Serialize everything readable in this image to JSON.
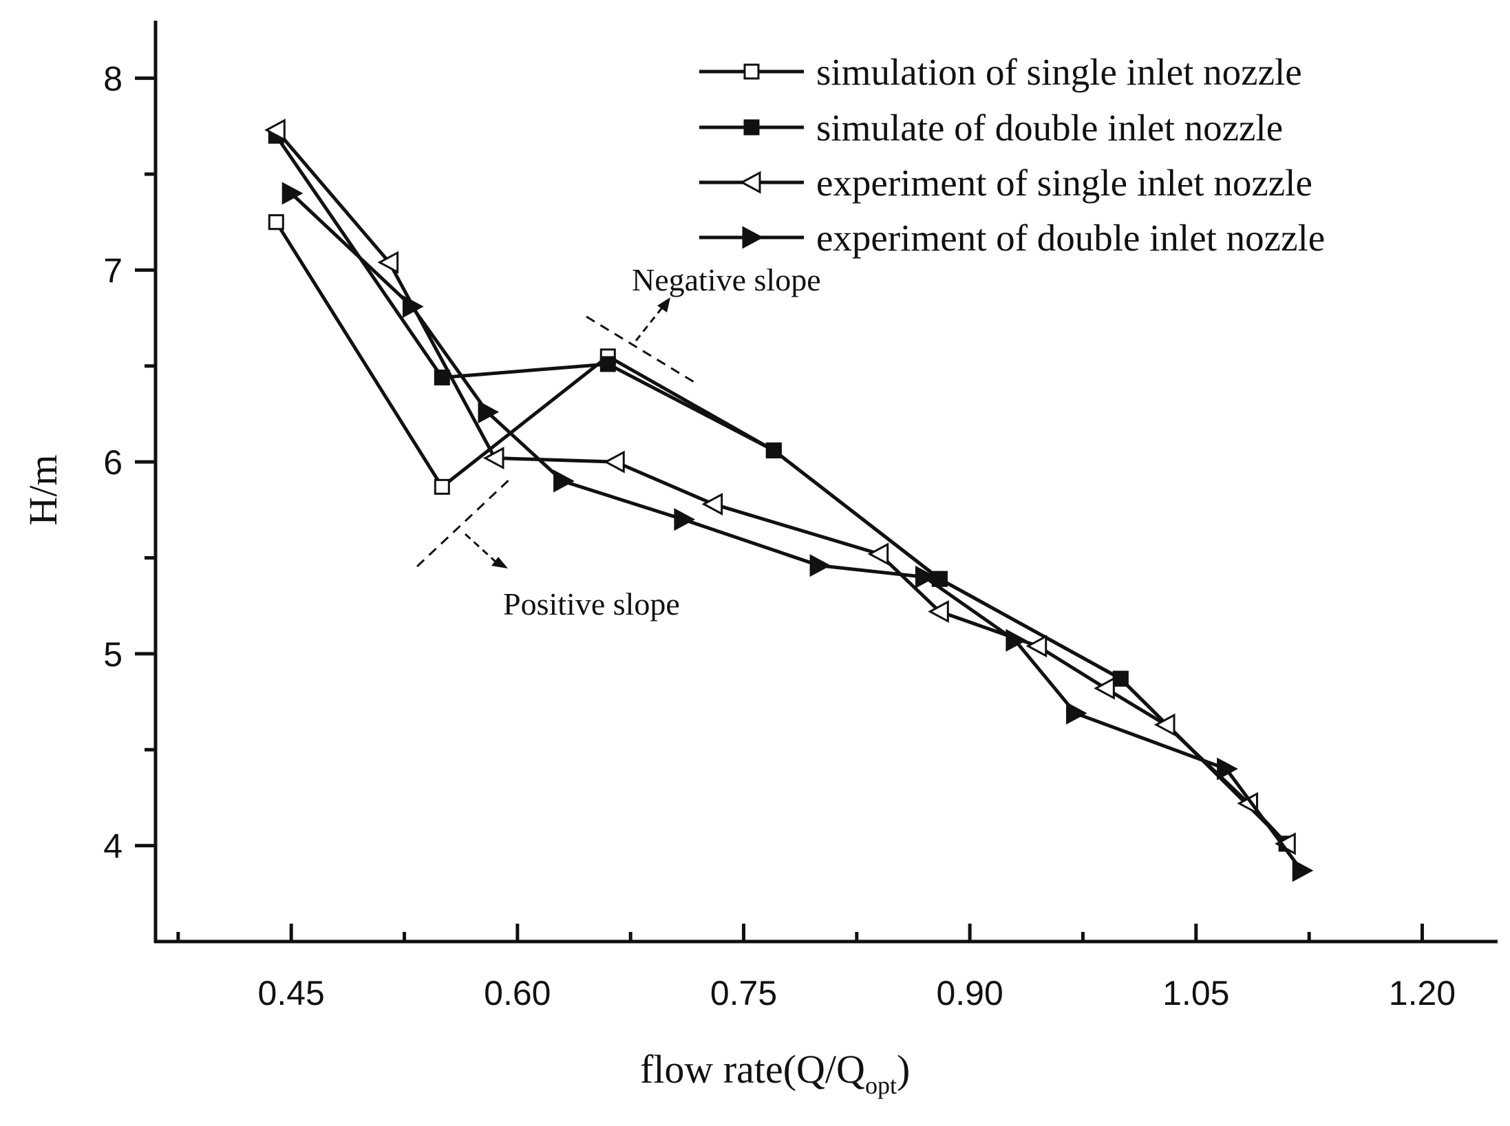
{
  "chart_data": {
    "type": "line",
    "title": "",
    "xlabel_main": "flow rate(Q/Q",
    "xlabel_sub": "opt",
    "xlabel_close": ")",
    "ylabel": "H/m",
    "xlim": [
      0.36,
      1.25
    ],
    "ylim": [
      3.5,
      8.3
    ],
    "xticks": [
      0.45,
      0.6,
      0.75,
      0.9,
      1.05,
      1.2
    ],
    "xtick_labels": [
      "0.45",
      "0.60",
      "0.75",
      "0.90",
      "1.05",
      "1.20"
    ],
    "x_minor_ticks": [
      0.375,
      0.525,
      0.675,
      0.825,
      0.975,
      1.125
    ],
    "yticks": [
      4,
      5,
      6,
      7,
      8
    ],
    "ytick_labels": [
      "4",
      "5",
      "6",
      "7",
      "8"
    ],
    "y_minor_ticks": [
      4.5,
      5.5,
      6.5,
      7.5
    ],
    "grid": false,
    "legend_position": "top-right",
    "series": [
      {
        "name": "simulation of single inlet nozzle",
        "marker": "square-open",
        "x": [
          0.44,
          0.55,
          0.66,
          0.77,
          0.88,
          1.0,
          1.11
        ],
        "y": [
          7.25,
          5.87,
          6.55,
          6.06,
          5.39,
          4.87,
          4.01
        ]
      },
      {
        "name": "simulate of  double inlet nozzle",
        "marker": "square-filled",
        "x": [
          0.44,
          0.55,
          0.66,
          0.77,
          0.88,
          1.0,
          1.11
        ],
        "y": [
          7.7,
          6.44,
          6.51,
          6.06,
          5.39,
          4.87,
          4.01
        ]
      },
      {
        "name": "experiment of single inlet nozzle",
        "marker": "triangle-left-open",
        "x": [
          0.44,
          0.515,
          0.585,
          0.665,
          0.73,
          0.84,
          0.88,
          0.945,
          0.99,
          1.03,
          1.085,
          1.11
        ],
        "y": [
          7.73,
          7.04,
          6.02,
          6.0,
          5.78,
          5.52,
          5.22,
          5.04,
          4.82,
          4.63,
          4.22,
          4.01
        ]
      },
      {
        "name": "experiment of  double inlet nozzle",
        "marker": "triangle-right-filled",
        "x": [
          0.45,
          0.53,
          0.58,
          0.63,
          0.71,
          0.8,
          0.87,
          0.93,
          0.97,
          1.07,
          1.12
        ],
        "y": [
          7.4,
          6.81,
          6.26,
          5.9,
          5.7,
          5.46,
          5.4,
          5.07,
          4.69,
          4.4,
          3.87
        ]
      }
    ],
    "annotations": [
      {
        "text": "Negative slope"
      },
      {
        "text": "Positive slope"
      }
    ]
  }
}
